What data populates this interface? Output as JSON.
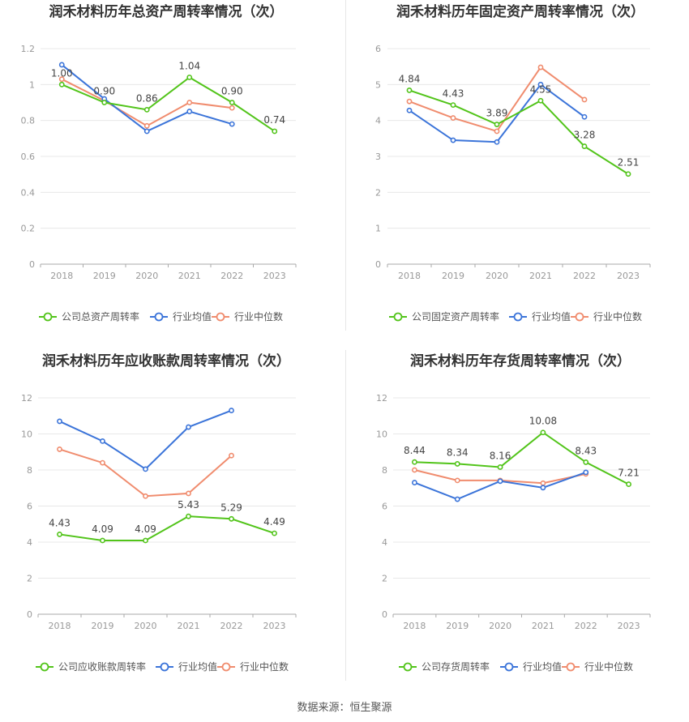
{
  "source": "数据来源：恒生聚源",
  "colors": {
    "company": "#52c41a",
    "avg": "#3b74d9",
    "median": "#f08c6e",
    "axis": "#999999",
    "grid": "#e8e8e8",
    "title": "#333333",
    "label": "#444444"
  },
  "legend": {
    "avg": "行业均值",
    "median": "行业中位数"
  },
  "chart_data": [
    {
      "type": "line",
      "title": "润禾材料历年总资产周转率情况（次）",
      "categories": [
        "2018",
        "2019",
        "2020",
        "2021",
        "2022",
        "2023"
      ],
      "ylim": [
        0,
        1.2
      ],
      "yticks": [
        "0",
        "0.2",
        "0.4",
        "0.6",
        "0.8",
        "1",
        "1.2"
      ],
      "legend_company": "公司总资产周转率",
      "series": [
        {
          "name": "公司总资产周转率",
          "key": "company",
          "values": [
            1.0,
            0.9,
            0.86,
            1.04,
            0.9,
            0.74
          ],
          "labels": [
            "1.00",
            "0.90",
            "0.86",
            "1.04",
            "0.90",
            "0.74"
          ]
        },
        {
          "name": "行业均值",
          "key": "avg",
          "values": [
            1.11,
            0.92,
            0.74,
            0.85,
            0.78,
            null
          ]
        },
        {
          "name": "行业中位数",
          "key": "median",
          "values": [
            1.03,
            0.91,
            0.77,
            0.9,
            0.87,
            null
          ]
        }
      ]
    },
    {
      "type": "line",
      "title": "润禾材料历年固定资产周转率情况（次）",
      "categories": [
        "2018",
        "2019",
        "2020",
        "2021",
        "2022",
        "2023"
      ],
      "ylim": [
        0,
        6
      ],
      "yticks": [
        "0",
        "1",
        "2",
        "3",
        "4",
        "5",
        "6"
      ],
      "legend_company": "公司固定资产周转率",
      "series": [
        {
          "name": "公司固定资产周转率",
          "key": "company",
          "values": [
            4.84,
            4.43,
            3.89,
            4.55,
            3.28,
            2.51
          ],
          "labels": [
            "4.84",
            "4.43",
            "3.89",
            "4.55",
            "3.28",
            "2.51"
          ]
        },
        {
          "name": "行业均值",
          "key": "avg",
          "values": [
            4.28,
            3.45,
            3.4,
            5.0,
            4.1,
            null
          ]
        },
        {
          "name": "行业中位数",
          "key": "median",
          "values": [
            4.53,
            4.07,
            3.7,
            5.48,
            4.58,
            null
          ]
        }
      ]
    },
    {
      "type": "line",
      "title": "润禾材料历年应收账款周转率情况（次）",
      "categories": [
        "2018",
        "2019",
        "2020",
        "2021",
        "2022",
        "2023"
      ],
      "ylim": [
        0,
        12
      ],
      "yticks": [
        "0",
        "2",
        "4",
        "6",
        "8",
        "10",
        "12"
      ],
      "legend_company": "公司应收账款周转率",
      "series": [
        {
          "name": "公司应收账款周转率",
          "key": "company",
          "values": [
            4.43,
            4.09,
            4.09,
            5.43,
            5.29,
            4.49
          ],
          "labels": [
            "4.43",
            "4.09",
            "4.09",
            "5.43",
            "5.29",
            "4.49"
          ]
        },
        {
          "name": "行业均值",
          "key": "avg",
          "values": [
            10.7,
            9.6,
            8.05,
            10.38,
            11.3,
            null
          ]
        },
        {
          "name": "行业中位数",
          "key": "median",
          "values": [
            9.15,
            8.4,
            6.55,
            6.7,
            8.8,
            null
          ]
        }
      ]
    },
    {
      "type": "line",
      "title": "润禾材料历年存货周转率情况（次）",
      "categories": [
        "2018",
        "2019",
        "2020",
        "2021",
        "2022",
        "2023"
      ],
      "ylim": [
        0,
        12
      ],
      "yticks": [
        "0",
        "2",
        "4",
        "6",
        "8",
        "10",
        "12"
      ],
      "legend_company": "公司存货周转率",
      "series": [
        {
          "name": "公司存货周转率",
          "key": "company",
          "values": [
            8.44,
            8.34,
            8.16,
            10.08,
            8.43,
            7.21
          ],
          "labels": [
            "8.44",
            "8.34",
            "8.16",
            "10.08",
            "8.43",
            "7.21"
          ]
        },
        {
          "name": "行业均值",
          "key": "avg",
          "values": [
            7.3,
            6.38,
            7.38,
            7.02,
            7.87,
            null
          ]
        },
        {
          "name": "行业中位数",
          "key": "median",
          "values": [
            8.0,
            7.42,
            7.42,
            7.27,
            7.78,
            null
          ]
        }
      ]
    }
  ]
}
